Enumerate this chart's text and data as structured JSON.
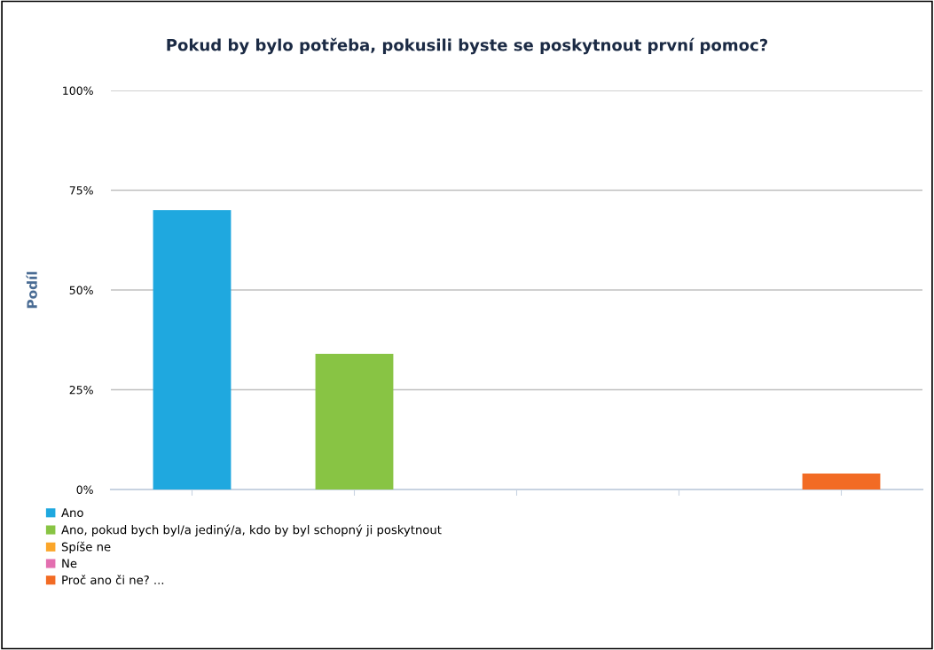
{
  "chart_data": {
    "type": "bar",
    "title": "Pokud by bylo potřeba, pokusili byste se poskytnout první pomoc?",
    "ylabel": "Podíl",
    "categories": [
      null,
      null,
      null,
      null,
      null
    ],
    "series": [
      {
        "name": "Ano",
        "color": "#1fa8df",
        "values": [
          70,
          null,
          null,
          null,
          null
        ]
      },
      {
        "name": "Ano, pokud bych byl/a jediný/a, kdo by byl schopný ji poskytnout",
        "color": "#88c444",
        "values": [
          null,
          34,
          null,
          null,
          null
        ]
      },
      {
        "name": "Spíše ne",
        "color": "#fba62a",
        "values": [
          null,
          null,
          0,
          null,
          null
        ]
      },
      {
        "name": "Ne",
        "color": "#e36fb0",
        "values": [
          null,
          null,
          null,
          0,
          null
        ]
      },
      {
        "name": "Proč ano či ne? ...",
        "color": "#f26b24",
        "values": [
          null,
          null,
          null,
          null,
          4
        ]
      }
    ],
    "ylim": [
      0,
      100
    ],
    "yticks": [
      {
        "value": 0,
        "label": "0%"
      },
      {
        "value": 25,
        "label": "25%"
      },
      {
        "value": 50,
        "label": "50%"
      },
      {
        "value": 75,
        "label": "75%"
      },
      {
        "value": 100,
        "label": "100%"
      }
    ],
    "grid": "y",
    "legend": "bottom left"
  }
}
